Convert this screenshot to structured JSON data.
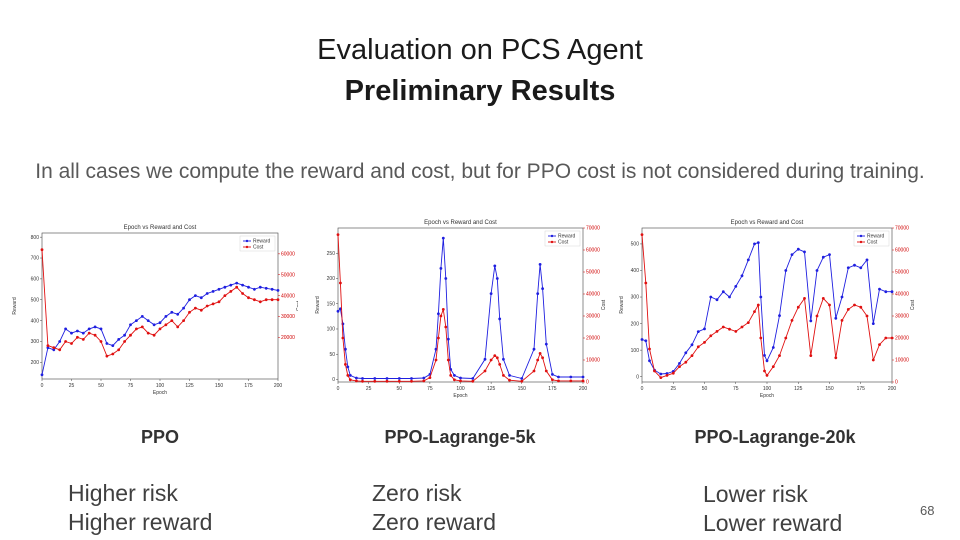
{
  "title": "Evaluation on PCS Agent",
  "subtitle": "Preliminary Results",
  "note": "In all cases we compute the reward and cost, but for PPO cost is not considered during training.",
  "page_number": "68",
  "colors": {
    "reward": "#1f1fe0",
    "cost": "#e01010"
  },
  "panels": [
    {
      "label": "PPO",
      "desc": [
        "Higher risk",
        "Higher reward"
      ]
    },
    {
      "label": "PPO-Lagrange-5k",
      "desc": [
        "Zero risk",
        "Zero reward"
      ]
    },
    {
      "label": "PPO-Lagrange-20k",
      "desc": [
        "Lower risk",
        "Lower reward"
      ]
    }
  ],
  "chart_data": [
    {
      "type": "line",
      "title": "Epoch vs Reward and Cost",
      "xlabel": "Epoch",
      "ylabel": "Reward",
      "y2label": "Cost",
      "xlim": [
        0,
        200
      ],
      "ylim": [
        120,
        820
      ],
      "y2lim": [
        0,
        70000
      ],
      "xticks": [
        "0",
        "25",
        "50",
        "75",
        "100",
        "125",
        "150",
        "175",
        "200"
      ],
      "yticks": [
        200,
        300,
        400,
        500,
        600,
        700,
        800
      ],
      "y2ticks": [
        20000,
        30000,
        40000,
        50000,
        60000
      ],
      "legend": [
        "Reward",
        "Cost"
      ],
      "legend_position": "top-right",
      "x": [
        0,
        5,
        10,
        15,
        20,
        25,
        30,
        35,
        40,
        45,
        50,
        55,
        60,
        65,
        70,
        75,
        80,
        85,
        90,
        95,
        100,
        105,
        110,
        115,
        120,
        125,
        130,
        135,
        140,
        145,
        150,
        155,
        160,
        165,
        170,
        175,
        180,
        185,
        190,
        195,
        200
      ],
      "series": [
        {
          "name": "Reward",
          "axis": "left",
          "values": [
            140,
            270,
            260,
            300,
            360,
            340,
            350,
            340,
            360,
            370,
            360,
            290,
            280,
            310,
            330,
            380,
            400,
            420,
            400,
            380,
            390,
            420,
            440,
            430,
            460,
            500,
            520,
            510,
            530,
            540,
            550,
            560,
            570,
            580,
            570,
            560,
            550,
            560,
            555,
            550,
            545
          ]
        },
        {
          "name": "Cost",
          "axis": "right",
          "values": [
            62000,
            16000,
            15000,
            14000,
            18000,
            17000,
            20000,
            19000,
            22000,
            21000,
            18000,
            11000,
            12000,
            14000,
            18000,
            21000,
            24000,
            25000,
            22000,
            21000,
            24000,
            26000,
            28000,
            25000,
            28000,
            32000,
            34000,
            33000,
            35000,
            36000,
            37000,
            40000,
            42000,
            44000,
            41000,
            39000,
            38000,
            37000,
            38000,
            38000,
            38000
          ]
        }
      ]
    },
    {
      "type": "line",
      "title": "Epoch vs Reward and Cost",
      "xlabel": "Epoch",
      "ylabel": "Reward",
      "y2label": "Cost",
      "xlim": [
        0,
        200
      ],
      "ylim": [
        -5,
        300
      ],
      "y2lim": [
        0,
        70000
      ],
      "xticks": [
        "0",
        "25",
        "50",
        "75",
        "100",
        "125",
        "150",
        "175",
        "200"
      ],
      "yticks": [
        0,
        50,
        100,
        150,
        200,
        250
      ],
      "y2ticks": [
        0,
        10000,
        20000,
        30000,
        40000,
        50000,
        60000,
        70000
      ],
      "legend": [
        "Reward",
        "Cost"
      ],
      "legend_position": "top-right",
      "x": [
        0,
        2,
        4,
        6,
        8,
        10,
        15,
        20,
        30,
        40,
        50,
        60,
        70,
        75,
        80,
        82,
        84,
        86,
        88,
        90,
        92,
        95,
        100,
        110,
        120,
        125,
        128,
        130,
        132,
        135,
        140,
        150,
        160,
        163,
        165,
        167,
        170,
        175,
        180,
        190,
        200
      ],
      "series": [
        {
          "name": "Reward",
          "axis": "left",
          "values": [
            135,
            140,
            110,
            60,
            25,
            8,
            3,
            2,
            2,
            2,
            2,
            2,
            3,
            10,
            60,
            130,
            220,
            280,
            200,
            80,
            20,
            8,
            3,
            2,
            40,
            170,
            225,
            200,
            120,
            40,
            8,
            2,
            60,
            170,
            228,
            180,
            70,
            10,
            5,
            5,
            5
          ]
        },
        {
          "name": "Cost",
          "axis": "right",
          "values": [
            67000,
            45000,
            20000,
            8000,
            3000,
            1000,
            500,
            300,
            300,
            300,
            300,
            300,
            500,
            2000,
            10000,
            20000,
            30000,
            33000,
            25000,
            10000,
            3000,
            1000,
            500,
            300,
            5000,
            10000,
            12000,
            11000,
            8000,
            3000,
            800,
            300,
            5000,
            10000,
            13000,
            11000,
            5000,
            1000,
            500,
            500,
            500
          ]
        }
      ]
    },
    {
      "type": "line",
      "title": "Epoch vs Reward and Cost",
      "xlabel": "Epoch",
      "ylabel": "Reward",
      "y2label": "Cost",
      "xlim": [
        0,
        200
      ],
      "ylim": [
        -20,
        560
      ],
      "y2lim": [
        0,
        70000
      ],
      "xticks": [
        "0",
        "25",
        "50",
        "75",
        "100",
        "125",
        "150",
        "175",
        "200"
      ],
      "yticks": [
        0,
        100,
        200,
        300,
        400,
        500
      ],
      "y2ticks": [
        0,
        10000,
        20000,
        30000,
        40000,
        50000,
        60000,
        70000
      ],
      "legend": [
        "Reward",
        "Cost"
      ],
      "legend_position": "top-right",
      "x": [
        0,
        3,
        6,
        10,
        15,
        20,
        25,
        30,
        35,
        40,
        45,
        50,
        55,
        60,
        65,
        70,
        75,
        80,
        85,
        90,
        93,
        95,
        98,
        100,
        105,
        110,
        115,
        120,
        125,
        130,
        135,
        140,
        145,
        150,
        155,
        160,
        165,
        170,
        175,
        180,
        185,
        190,
        195,
        200
      ],
      "series": [
        {
          "name": "Reward",
          "axis": "left",
          "values": [
            140,
            135,
            60,
            25,
            10,
            12,
            20,
            50,
            90,
            120,
            170,
            180,
            300,
            290,
            320,
            300,
            340,
            380,
            440,
            500,
            505,
            300,
            80,
            60,
            110,
            230,
            400,
            460,
            480,
            470,
            210,
            400,
            450,
            460,
            220,
            300,
            410,
            420,
            410,
            440,
            200,
            330,
            320,
            320
          ]
        },
        {
          "name": "Cost",
          "axis": "right",
          "values": [
            67000,
            45000,
            15000,
            5000,
            2000,
            3000,
            4000,
            7000,
            9000,
            12000,
            16000,
            18000,
            21000,
            23000,
            25000,
            24000,
            23000,
            25000,
            27000,
            32000,
            35000,
            20000,
            5000,
            3000,
            7000,
            12000,
            20000,
            28000,
            34000,
            38000,
            12000,
            30000,
            38000,
            35000,
            11000,
            28000,
            33000,
            35000,
            34000,
            30000,
            10000,
            17000,
            20000,
            20000
          ]
        }
      ]
    }
  ]
}
